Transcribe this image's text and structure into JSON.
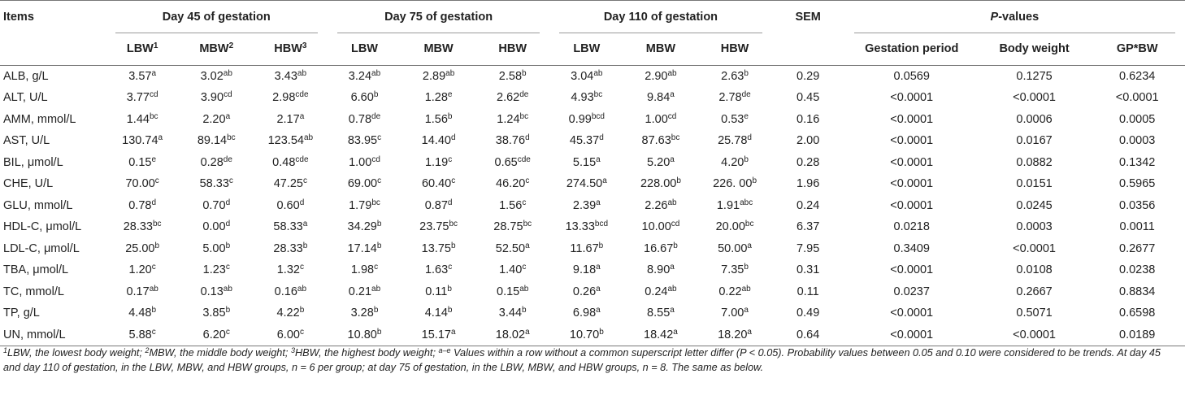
{
  "header": {
    "items": "Items",
    "groups": [
      {
        "label": "Day 45 of gestation"
      },
      {
        "label": "Day 75 of gestation"
      },
      {
        "label": "Day 110 of gestation"
      }
    ],
    "sem": "SEM",
    "pvalues_italic": "P",
    "pvalues_rest": "-values",
    "subheaders": [
      {
        "text": "LBW",
        "sup": "1"
      },
      {
        "text": "MBW",
        "sup": "2"
      },
      {
        "text": "HBW",
        "sup": "3"
      },
      {
        "text": "LBW",
        "sup": ""
      },
      {
        "text": "MBW",
        "sup": ""
      },
      {
        "text": "HBW",
        "sup": ""
      },
      {
        "text": "LBW",
        "sup": ""
      },
      {
        "text": "MBW",
        "sup": ""
      },
      {
        "text": "HBW",
        "sup": ""
      }
    ],
    "pcols": [
      "Gestation period",
      "Body weight",
      "GP*BW"
    ]
  },
  "rows": [
    {
      "item": "ALB, g/L",
      "cells": [
        {
          "v": "3.57",
          "s": "a"
        },
        {
          "v": "3.02",
          "s": "ab"
        },
        {
          "v": "3.43",
          "s": "ab"
        },
        {
          "v": "3.24",
          "s": "ab"
        },
        {
          "v": "2.89",
          "s": "ab"
        },
        {
          "v": "2.58",
          "s": "b"
        },
        {
          "v": "3.04",
          "s": "ab"
        },
        {
          "v": "2.90",
          "s": "ab"
        },
        {
          "v": "2.63",
          "s": "b"
        }
      ],
      "sem": "0.29",
      "p": [
        "0.0569",
        "0.1275",
        "0.6234"
      ]
    },
    {
      "item": "ALT, U/L",
      "cells": [
        {
          "v": "3.77",
          "s": "cd"
        },
        {
          "v": "3.90",
          "s": "cd"
        },
        {
          "v": "2.98",
          "s": "cde"
        },
        {
          "v": "6.60",
          "s": "b"
        },
        {
          "v": "1.28",
          "s": "e"
        },
        {
          "v": "2.62",
          "s": "de"
        },
        {
          "v": "4.93",
          "s": "bc"
        },
        {
          "v": "9.84",
          "s": "a"
        },
        {
          "v": "2.78",
          "s": "de"
        }
      ],
      "sem": "0.45",
      "p": [
        "<0.0001",
        "<0.0001",
        "<0.0001"
      ]
    },
    {
      "item": "AMM, mmol/L",
      "cells": [
        {
          "v": "1.44",
          "s": "bc"
        },
        {
          "v": "2.20",
          "s": "a"
        },
        {
          "v": "2.17",
          "s": "a"
        },
        {
          "v": "0.78",
          "s": "de"
        },
        {
          "v": "1.56",
          "s": "b"
        },
        {
          "v": "1.24",
          "s": "bc"
        },
        {
          "v": "0.99",
          "s": "bcd"
        },
        {
          "v": "1.00",
          "s": "cd"
        },
        {
          "v": "0.53",
          "s": "e"
        }
      ],
      "sem": "0.16",
      "p": [
        "<0.0001",
        "0.0006",
        "0.0005"
      ]
    },
    {
      "item": "AST, U/L",
      "cells": [
        {
          "v": "130.74",
          "s": "a"
        },
        {
          "v": "89.14",
          "s": "bc"
        },
        {
          "v": "123.54",
          "s": "ab"
        },
        {
          "v": "83.95",
          "s": "c"
        },
        {
          "v": "14.40",
          "s": "d"
        },
        {
          "v": "38.76",
          "s": "d"
        },
        {
          "v": "45.37",
          "s": "d"
        },
        {
          "v": "87.63",
          "s": "bc"
        },
        {
          "v": "25.78",
          "s": "d"
        }
      ],
      "sem": "2.00",
      "p": [
        "<0.0001",
        "0.0167",
        "0.0003"
      ]
    },
    {
      "item": "BIL, μmol/L",
      "cells": [
        {
          "v": "0.15",
          "s": "e"
        },
        {
          "v": "0.28",
          "s": "de"
        },
        {
          "v": "0.48",
          "s": "cde"
        },
        {
          "v": "1.00",
          "s": "cd"
        },
        {
          "v": "1.19",
          "s": "c"
        },
        {
          "v": "0.65",
          "s": "cde"
        },
        {
          "v": "5.15",
          "s": "a"
        },
        {
          "v": "5.20",
          "s": "a"
        },
        {
          "v": "4.20",
          "s": "b"
        }
      ],
      "sem": "0.28",
      "p": [
        "<0.0001",
        "0.0882",
        "0.1342"
      ]
    },
    {
      "item": "CHE, U/L",
      "cells": [
        {
          "v": "70.00",
          "s": "c"
        },
        {
          "v": "58.33",
          "s": "c"
        },
        {
          "v": "47.25",
          "s": "c"
        },
        {
          "v": "69.00",
          "s": "c"
        },
        {
          "v": "60.40",
          "s": "c"
        },
        {
          "v": "46.20",
          "s": "c"
        },
        {
          "v": "274.50",
          "s": "a"
        },
        {
          "v": "228.00",
          "s": "b"
        },
        {
          "v": "226. 00",
          "s": "b"
        }
      ],
      "sem": "1.96",
      "p": [
        "<0.0001",
        "0.0151",
        "0.5965"
      ]
    },
    {
      "item": "GLU, mmol/L",
      "cells": [
        {
          "v": "0.78",
          "s": "d"
        },
        {
          "v": "0.70",
          "s": "d"
        },
        {
          "v": "0.60",
          "s": "d"
        },
        {
          "v": "1.79",
          "s": "bc"
        },
        {
          "v": "0.87",
          "s": "d"
        },
        {
          "v": "1.56",
          "s": "c"
        },
        {
          "v": "2.39",
          "s": "a"
        },
        {
          "v": "2.26",
          "s": "ab"
        },
        {
          "v": "1.91",
          "s": "abc"
        }
      ],
      "sem": "0.24",
      "p": [
        "<0.0001",
        "0.0245",
        "0.0356"
      ]
    },
    {
      "item": "HDL-C, μmol/L",
      "cells": [
        {
          "v": "28.33",
          "s": "bc"
        },
        {
          "v": "0.00",
          "s": "d"
        },
        {
          "v": "58.33",
          "s": "a"
        },
        {
          "v": "34.29",
          "s": "b"
        },
        {
          "v": "23.75",
          "s": "bc"
        },
        {
          "v": "28.75",
          "s": "bc"
        },
        {
          "v": "13.33",
          "s": "bcd"
        },
        {
          "v": "10.00",
          "s": "cd"
        },
        {
          "v": "20.00",
          "s": "bc"
        }
      ],
      "sem": "6.37",
      "p": [
        "0.0218",
        "0.0003",
        "0.0011"
      ]
    },
    {
      "item": "LDL-C, μmol/L",
      "cells": [
        {
          "v": "25.00",
          "s": "b"
        },
        {
          "v": "5.00",
          "s": "b"
        },
        {
          "v": "28.33",
          "s": "b"
        },
        {
          "v": "17.14",
          "s": "b"
        },
        {
          "v": "13.75",
          "s": "b"
        },
        {
          "v": "52.50",
          "s": "a"
        },
        {
          "v": "11.67",
          "s": "b"
        },
        {
          "v": "16.67",
          "s": "b"
        },
        {
          "v": "50.00",
          "s": "a"
        }
      ],
      "sem": "7.95",
      "p": [
        "0.3409",
        "<0.0001",
        "0.2677"
      ]
    },
    {
      "item": "TBA, μmol/L",
      "cells": [
        {
          "v": "1.20",
          "s": "c"
        },
        {
          "v": "1.23",
          "s": "c"
        },
        {
          "v": "1.32",
          "s": "c"
        },
        {
          "v": "1.98",
          "s": "c"
        },
        {
          "v": "1.63",
          "s": "c"
        },
        {
          "v": "1.40",
          "s": "c"
        },
        {
          "v": "9.18",
          "s": "a"
        },
        {
          "v": "8.90",
          "s": "a"
        },
        {
          "v": "7.35",
          "s": "b"
        }
      ],
      "sem": "0.31",
      "p": [
        "<0.0001",
        "0.0108",
        "0.0238"
      ]
    },
    {
      "item": "TC, mmol/L",
      "cells": [
        {
          "v": "0.17",
          "s": "ab"
        },
        {
          "v": "0.13",
          "s": "ab"
        },
        {
          "v": "0.16",
          "s": "ab"
        },
        {
          "v": "0.21",
          "s": "ab"
        },
        {
          "v": "0.11",
          "s": "b"
        },
        {
          "v": "0.15",
          "s": "ab"
        },
        {
          "v": "0.26",
          "s": "a"
        },
        {
          "v": "0.24",
          "s": "ab"
        },
        {
          "v": "0.22",
          "s": "ab"
        }
      ],
      "sem": "0.11",
      "p": [
        "0.0237",
        "0.2667",
        "0.8834"
      ]
    },
    {
      "item": "TP, g/L",
      "cells": [
        {
          "v": "4.48",
          "s": "b"
        },
        {
          "v": "3.85",
          "s": "b"
        },
        {
          "v": "4.22",
          "s": "b"
        },
        {
          "v": "3.28",
          "s": "b"
        },
        {
          "v": "4.14",
          "s": "b"
        },
        {
          "v": "3.44",
          "s": "b"
        },
        {
          "v": "6.98",
          "s": "a"
        },
        {
          "v": "8.55",
          "s": "a"
        },
        {
          "v": "7.00",
          "s": "a"
        }
      ],
      "sem": "0.49",
      "p": [
        "<0.0001",
        "0.5071",
        "0.6598"
      ]
    },
    {
      "item": "UN, mmol/L",
      "cells": [
        {
          "v": "5.88",
          "s": "c"
        },
        {
          "v": "6.20",
          "s": "c"
        },
        {
          "v": "6.00",
          "s": "c"
        },
        {
          "v": "10.80",
          "s": "b"
        },
        {
          "v": "15.17",
          "s": "a"
        },
        {
          "v": "18.02",
          "s": "a"
        },
        {
          "v": "10.70",
          "s": "b"
        },
        {
          "v": "18.42",
          "s": "a"
        },
        {
          "v": "18.20",
          "s": "a"
        }
      ],
      "sem": "0.64",
      "p": [
        "<0.0001",
        "<0.0001",
        "0.0189"
      ]
    }
  ],
  "footnote": {
    "parts": [
      {
        "t": "sup",
        "v": "1"
      },
      {
        "t": "text",
        "v": "LBW, the lowest body weight; "
      },
      {
        "t": "sup",
        "v": "2"
      },
      {
        "t": "text",
        "v": "MBW, the middle body weight; "
      },
      {
        "t": "sup",
        "v": "3"
      },
      {
        "t": "text",
        "v": "HBW, the highest body weight; "
      },
      {
        "t": "sup",
        "v": "a–e"
      },
      {
        "t": "text",
        "v": " Values within a row without a common superscript letter differ (P < 0.05). Probability values between 0.05 and 0.10 were considered to be trends. At day 45 and day 110 of gestation, in the LBW, MBW, and HBW groups, n = 6 per group; at day 75 of gestation, in the LBW, MBW, and HBW groups, n = 8. The same as below."
      }
    ]
  }
}
